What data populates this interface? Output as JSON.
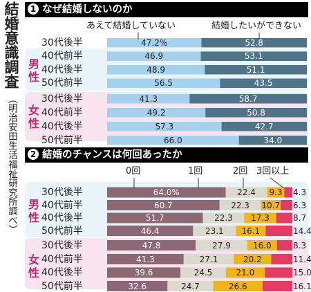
{
  "side_title": "結婚意識調査",
  "side_credit": "（明治安田生活福祉研究所調べ）",
  "colors": {
    "light_blue": "#a5d1ec",
    "slate": "#4f7487",
    "male_bg": "#e9f3fa",
    "female_bg": "#f7e4ef",
    "gender_text": "#c02a6c",
    "mauve": "#8b6874",
    "light_gray": "#dcd9cf",
    "yellow": "#f1b41c",
    "pink": "#e43b64"
  },
  "section1": {
    "number": "1",
    "title": "なぜ結婚しないのか",
    "legend": [
      "あえて結婚していない",
      "結婚したいができない"
    ],
    "male_label": "男性",
    "female_label": "女性",
    "chart_data": {
      "type": "bar",
      "stacked": true,
      "orientation": "horizontal",
      "categories": [
        "30代後半",
        "40代前半",
        "40代後半",
        "50代前半",
        "30代後半",
        "40代前半",
        "40代後半",
        "50代前半"
      ],
      "groups": [
        "男性",
        "男性",
        "男性",
        "男性",
        "女性",
        "女性",
        "女性",
        "女性"
      ],
      "series": [
        {
          "name": "あえて結婚していない",
          "values": [
            "47.2%",
            "46.9",
            "48.9",
            "56.5",
            "41.3",
            "49.2",
            "57.3",
            "66.0"
          ]
        },
        {
          "name": "結婚したいができない",
          "values": [
            "52.8",
            "53.1",
            "51.1",
            "43.5",
            "58.7",
            "50.8",
            "42.7",
            "34.0"
          ]
        }
      ]
    }
  },
  "section2": {
    "number": "2",
    "title": "結婚のチャンスは何回あったか",
    "legend": [
      "0回",
      "1回",
      "2回",
      "3回以上"
    ],
    "male_label": "男性",
    "female_label": "女性",
    "chart_data": {
      "type": "bar",
      "stacked": true,
      "orientation": "horizontal",
      "categories": [
        "30代後半",
        "40代前半",
        "40代後半",
        "50代前半",
        "30代後半",
        "40代前半",
        "40代後半",
        "50代前半"
      ],
      "groups": [
        "男性",
        "男性",
        "男性",
        "男性",
        "女性",
        "女性",
        "女性",
        "女性"
      ],
      "series": [
        {
          "name": "0回",
          "values": [
            "64.0%",
            "60.7",
            "51.7",
            "46.4",
            "47.8",
            "41.3",
            "39.6",
            "32.6"
          ]
        },
        {
          "name": "1回",
          "values": [
            "22.4",
            "22.3",
            "22.3",
            "23.1",
            "27.9",
            "27.1",
            "24.5",
            "24.7"
          ]
        },
        {
          "name": "2回",
          "values": [
            "9.3",
            "10.7",
            "17.3",
            "16.1",
            "16.0",
            "20.2",
            "21.0",
            "26.6"
          ]
        },
        {
          "name": "3回以上",
          "values": [
            "4.3",
            "6.3",
            "8.7",
            "14.4",
            "8.3",
            "11.4",
            "15.0",
            "16.1"
          ]
        }
      ]
    }
  }
}
